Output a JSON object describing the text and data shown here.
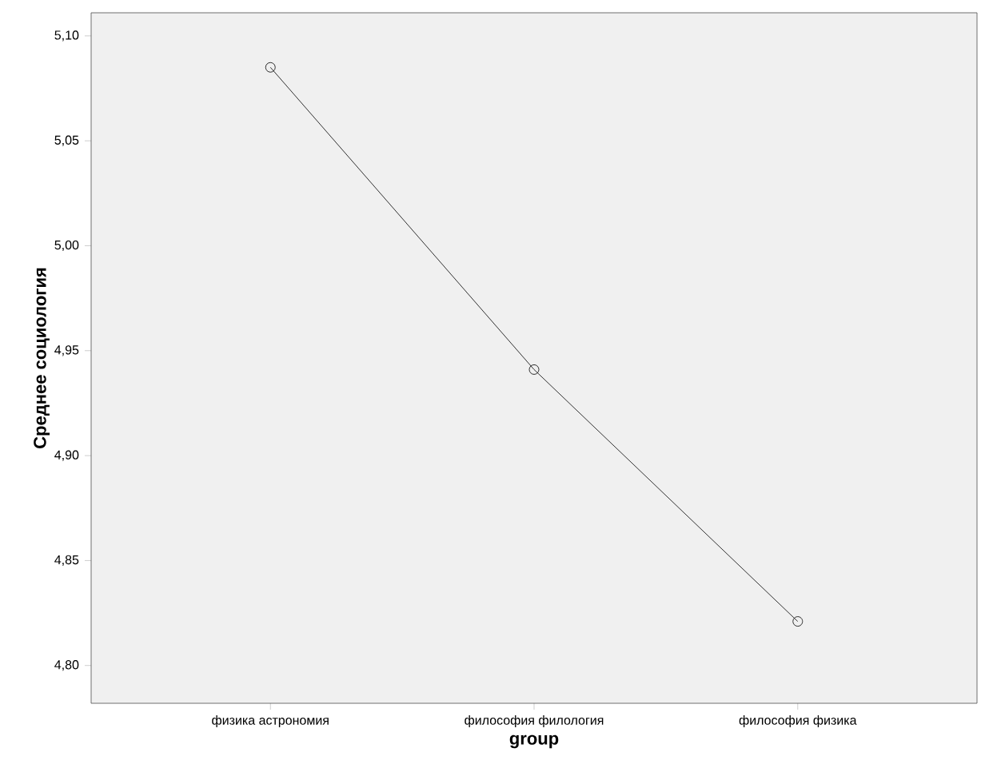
{
  "chart_data": {
    "type": "line",
    "xlabel": "group",
    "ylabel": "Среднее социология",
    "categories": [
      "физика астрономия",
      "философия филология",
      "философия физика"
    ],
    "values": [
      5.085,
      4.941,
      4.821
    ],
    "color": "#000000",
    "marker": "circle",
    "line_style": "solid",
    "ylim": [
      4.782,
      5.111
    ],
    "yticks": [
      {
        "value": 4.8,
        "label": "4,80"
      },
      {
        "value": 4.85,
        "label": "4,85"
      },
      {
        "value": 4.9,
        "label": "4,90"
      },
      {
        "value": 4.95,
        "label": "4,95"
      },
      {
        "value": 5.0,
        "label": "5,00"
      },
      {
        "value": 5.05,
        "label": "5,05"
      },
      {
        "value": 5.1,
        "label": "5,10"
      }
    ],
    "grid": false
  }
}
